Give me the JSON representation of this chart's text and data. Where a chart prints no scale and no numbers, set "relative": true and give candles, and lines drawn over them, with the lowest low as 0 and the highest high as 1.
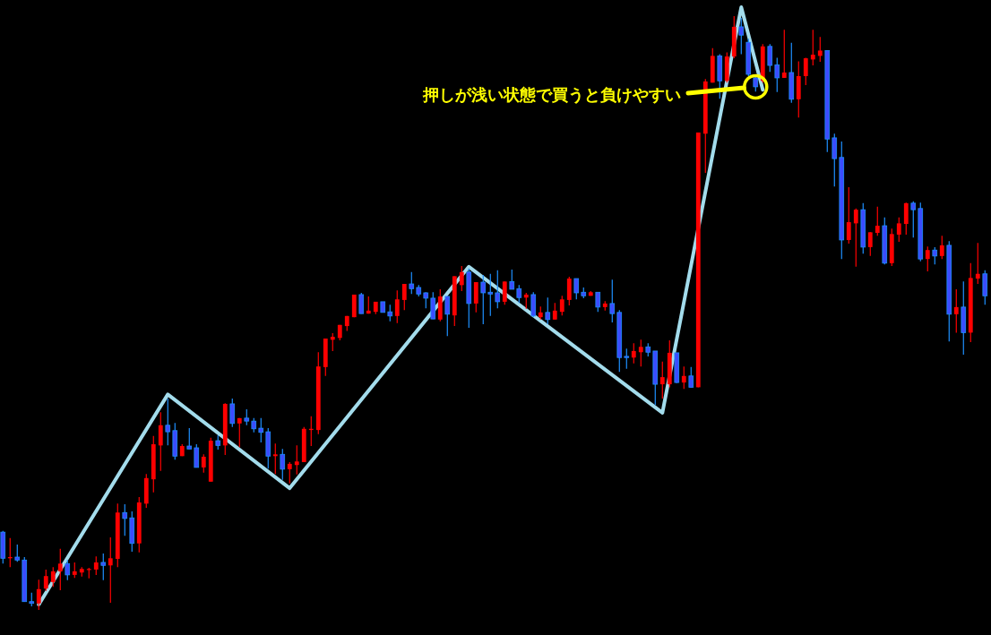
{
  "chart_data": {
    "type": "candlestick",
    "relative": true,
    "categories": [
      null,
      null,
      null,
      null,
      null,
      null,
      null,
      null,
      null,
      null,
      null,
      null,
      null,
      null,
      null,
      null,
      null,
      null,
      null,
      null,
      null,
      null,
      null,
      null,
      null,
      null,
      null,
      null,
      null,
      null,
      null,
      null,
      null,
      null,
      null,
      null,
      null,
      null,
      null,
      null,
      null,
      null,
      null,
      null,
      null,
      null,
      null,
      null,
      null,
      null,
      null,
      null,
      null,
      null,
      null,
      null,
      null,
      null,
      null,
      null,
      null,
      null,
      null,
      null,
      null,
      null,
      null,
      null,
      null,
      null,
      null,
      null,
      null,
      null,
      null,
      null,
      null,
      null,
      null,
      null,
      null,
      null,
      null,
      null,
      null,
      null,
      null,
      null,
      null,
      null,
      null,
      null,
      null,
      null,
      null,
      null,
      null,
      null,
      null,
      null,
      null,
      null,
      null,
      null,
      null,
      null,
      null,
      null,
      null,
      null,
      null,
      null,
      null,
      null,
      null,
      null,
      null,
      null,
      null,
      null,
      null,
      null,
      null,
      null,
      null,
      null,
      null,
      null,
      null,
      null,
      null,
      null,
      null,
      null,
      null,
      null,
      null,
      null
    ],
    "ohlc": [
      [
        0.131,
        0.133,
        0.078,
        0.087
      ],
      [
        0.087,
        0.121,
        0.072,
        0.089
      ],
      [
        0.089,
        0.11,
        0.081,
        0.084
      ],
      [
        0.084,
        0.089,
        0.014,
        0.014
      ],
      [
        0.014,
        0.029,
        0.006,
        0.011
      ],
      [
        0.011,
        0.051,
        0,
        0.035
      ],
      [
        0.036,
        0.068,
        0.032,
        0.057
      ],
      [
        0.047,
        0.072,
        0.039,
        0.065
      ],
      [
        0.065,
        0.103,
        0.033,
        0.078
      ],
      [
        0.078,
        0.084,
        0.05,
        0.059
      ],
      [
        0.059,
        0.08,
        0.054,
        0.065
      ],
      [
        0.063,
        0.072,
        0.056,
        0.069
      ],
      [
        0.068,
        0.071,
        0.053,
        0.069
      ],
      [
        0.068,
        0.09,
        0.059,
        0.08
      ],
      [
        0.08,
        0.095,
        0.05,
        0.075
      ],
      [
        0.075,
        0.122,
        0.012,
        0.087
      ],
      [
        0.086,
        0.179,
        0.072,
        0.164
      ],
      [
        0.164,
        0.178,
        0.125,
        0.154
      ],
      [
        0.155,
        0.166,
        0.098,
        0.112
      ],
      [
        0.112,
        0.19,
        0.097,
        0.181
      ],
      [
        0.179,
        0.229,
        0.172,
        0.222
      ],
      [
        0.22,
        0.293,
        0.198,
        0.279
      ],
      [
        0.277,
        0.333,
        0.234,
        0.311
      ],
      [
        0.311,
        0.356,
        0.277,
        0.3
      ],
      [
        0.302,
        0.315,
        0.253,
        0.259
      ],
      [
        0.259,
        0.279,
        0.259,
        0.276
      ],
      [
        0.276,
        0.306,
        0.271,
        0.271
      ],
      [
        0.273,
        0.279,
        0.24,
        0.24
      ],
      [
        0.24,
        0.262,
        0.231,
        0.258
      ],
      [
        0.216,
        0.29,
        0.216,
        0.285
      ],
      [
        0.285,
        0.294,
        0.27,
        0.277
      ],
      [
        0.277,
        0.348,
        0.261,
        0.347
      ],
      [
        0.347,
        0.356,
        0.308,
        0.314
      ],
      [
        0.314,
        0.323,
        0.274,
        0.323
      ],
      [
        0.323,
        0.338,
        0.311,
        0.318
      ],
      [
        0.318,
        0.323,
        0.299,
        0.305
      ],
      [
        0.306,
        0.323,
        0.282,
        0.299
      ],
      [
        0.3,
        0.306,
        0.238,
        0.259
      ],
      [
        0.259,
        0.28,
        0.229,
        0.262
      ],
      [
        0.262,
        0.271,
        0.219,
        0.237
      ],
      [
        0.237,
        0.249,
        0.213,
        0.246
      ],
      [
        0.244,
        0.277,
        0.228,
        0.25
      ],
      [
        0.249,
        0.308,
        0.249,
        0.305
      ],
      [
        0.303,
        0.326,
        0.276,
        0.305
      ],
      [
        0.303,
        0.434,
        0.296,
        0.41
      ],
      [
        0.409,
        0.457,
        0.394,
        0.457
      ],
      [
        0.455,
        0.466,
        0.436,
        0.46
      ],
      [
        0.458,
        0.48,
        0.454,
        0.48
      ],
      [
        0.478,
        0.495,
        0.47,
        0.495
      ],
      [
        0.493,
        0.531,
        0.493,
        0.531
      ],
      [
        0.531,
        0.534,
        0.499,
        0.499
      ],
      [
        0.499,
        0.528,
        0.499,
        0.504
      ],
      [
        0.502,
        0.519,
        0.498,
        0.519
      ],
      [
        0.519,
        0.519,
        0.501,
        0.501
      ],
      [
        0.502,
        0.514,
        0.486,
        0.495
      ],
      [
        0.495,
        0.538,
        0.483,
        0.523
      ],
      [
        0.522,
        0.549,
        0.505,
        0.549
      ],
      [
        0.549,
        0.569,
        0.532,
        0.541
      ],
      [
        0.543,
        0.547,
        0.528,
        0.532
      ],
      [
        0.534,
        0.535,
        0.508,
        0.525
      ],
      [
        0.525,
        0.535,
        0.49,
        0.49
      ],
      [
        0.489,
        0.54,
        0.486,
        0.528
      ],
      [
        0.528,
        0.528,
        0.461,
        0.498
      ],
      [
        0.496,
        0.562,
        0.478,
        0.562
      ],
      [
        0.547,
        0.579,
        0.537,
        0.569
      ],
      [
        0.569,
        0.575,
        0.475,
        0.516
      ],
      [
        0.516,
        0.552,
        0.501,
        0.552
      ],
      [
        0.552,
        0.564,
        0.481,
        0.534
      ],
      [
        0.535,
        0.566,
        0.495,
        0.532
      ],
      [
        0.534,
        0.572,
        0.508,
        0.519
      ],
      [
        0.519,
        0.553,
        0.514,
        0.553
      ],
      [
        0.553,
        0.573,
        0.54,
        0.54
      ],
      [
        0.541,
        0.547,
        0.517,
        0.526
      ],
      [
        0.526,
        0.534,
        0.507,
        0.531
      ],
      [
        0.531,
        0.535,
        0.493,
        0.495
      ],
      [
        0.493,
        0.511,
        0.489,
        0.501
      ],
      [
        0.501,
        0.526,
        0.481,
        0.489
      ],
      [
        0.489,
        0.517,
        0.489,
        0.504
      ],
      [
        0.502,
        0.529,
        0.496,
        0.523
      ],
      [
        0.522,
        0.561,
        0.513,
        0.558
      ],
      [
        0.558,
        0.558,
        0.523,
        0.534
      ],
      [
        0.535,
        0.543,
        0.525,
        0.529
      ],
      [
        0.529,
        0.537,
        0.529,
        0.535
      ],
      [
        0.535,
        0.535,
        0.502,
        0.51
      ],
      [
        0.51,
        0.52,
        0.504,
        0.516
      ],
      [
        0.516,
        0.556,
        0.484,
        0.499
      ],
      [
        0.501,
        0.505,
        0.401,
        0.425
      ],
      [
        0.427,
        0.44,
        0.406,
        0.425
      ],
      [
        0.425,
        0.449,
        0.415,
        0.436
      ],
      [
        0.434,
        0.455,
        0.41,
        0.443
      ],
      [
        0.443,
        0.449,
        0.427,
        0.434
      ],
      [
        0.436,
        0.436,
        0.345,
        0.38
      ],
      [
        0.38,
        0.418,
        0.356,
        0.392
      ],
      [
        0.38,
        0.454,
        0.375,
        0.433
      ],
      [
        0.433,
        0.433,
        0.382,
        0.383
      ],
      [
        0.383,
        0.41,
        0.372,
        0.394
      ],
      [
        0.394,
        0.409,
        0.375,
        0.375
      ],
      [
        0.375,
        0.804,
        0.375,
        0.804
      ],
      [
        0.802,
        0.894,
        0.736,
        0.89
      ],
      [
        0.888,
        0.946,
        0.888,
        0.933
      ],
      [
        0.933,
        0.936,
        0.861,
        0.891
      ],
      [
        0.891,
        0.939,
        0.888,
        0.932
      ],
      [
        0.932,
        1,
        0.929,
        0.982
      ],
      [
        0.982,
        0.997,
        0.936,
        0.968
      ],
      [
        0.956,
        0.962,
        0.899,
        0.902
      ],
      [
        0.896,
        0.899,
        0.873,
        0.881
      ],
      [
        0.891,
        0.953,
        0.888,
        0.949
      ],
      [
        0.949,
        0.953,
        0.906,
        0.917
      ],
      [
        0.918,
        0.93,
        0.872,
        0.896
      ],
      [
        0.896,
        0.977,
        0.896,
        0.905
      ],
      [
        0.905,
        0.955,
        0.854,
        0.86
      ],
      [
        0.86,
        0.924,
        0.829,
        0.899
      ],
      [
        0.899,
        0.93,
        0.884,
        0.929
      ],
      [
        0.927,
        0.977,
        0.917,
        0.935
      ],
      [
        0.933,
        0.965,
        0.923,
        0.942
      ],
      [
        0.942,
        0.942,
        0.771,
        0.793
      ],
      [
        0.795,
        0.802,
        0.713,
        0.76
      ],
      [
        0.762,
        0.789,
        0.591,
        0.623
      ],
      [
        0.623,
        0.712,
        0.617,
        0.653
      ],
      [
        0.651,
        0.676,
        0.578,
        0.674
      ],
      [
        0.674,
        0.685,
        0.6,
        0.611
      ],
      [
        0.611,
        0.636,
        0.596,
        0.636
      ],
      [
        0.635,
        0.679,
        0.63,
        0.647
      ],
      [
        0.647,
        0.661,
        0.582,
        0.584
      ],
      [
        0.584,
        0.642,
        0.579,
        0.633
      ],
      [
        0.632,
        0.661,
        0.62,
        0.651
      ],
      [
        0.65,
        0.686,
        0.632,
        0.685
      ],
      [
        0.685,
        0.688,
        0.627,
        0.674
      ],
      [
        0.676,
        0.686,
        0.587,
        0.591
      ],
      [
        0.591,
        0.612,
        0.57,
        0.606
      ],
      [
        0.606,
        0.611,
        0.582,
        0.596
      ],
      [
        0.596,
        0.63,
        0.591,
        0.614
      ],
      [
        0.614,
        0.621,
        0.452,
        0.498
      ],
      [
        0.498,
        0.54,
        0.467,
        0.51
      ],
      [
        0.51,
        0.553,
        0.43,
        0.467
      ],
      [
        0.467,
        0.584,
        0.451,
        0.559
      ],
      [
        0.558,
        0.618,
        0.549,
        0.566
      ],
      [
        0.566,
        0.572,
        0.514,
        0.529
      ]
    ],
    "series": [
      {
        "type": "line",
        "color": "#a3dcec",
        "values": [
          null,
          null,
          null,
          null,
          null,
          0.009,
          null,
          null,
          null,
          null,
          null,
          null,
          null,
          null,
          null,
          null,
          null,
          null,
          null,
          null,
          null,
          null,
          null,
          0.363,
          null,
          null,
          null,
          null,
          null,
          null,
          null,
          null,
          null,
          null,
          null,
          null,
          null,
          null,
          null,
          null,
          0.205,
          null,
          null,
          null,
          null,
          null,
          null,
          null,
          null,
          null,
          null,
          null,
          null,
          null,
          null,
          null,
          null,
          null,
          null,
          null,
          null,
          null,
          null,
          null,
          null,
          0.578,
          null,
          null,
          null,
          null,
          null,
          null,
          null,
          null,
          null,
          null,
          null,
          null,
          null,
          null,
          null,
          null,
          null,
          null,
          null,
          null,
          null,
          null,
          null,
          null,
          null,
          null,
          0.332,
          null,
          null,
          null,
          null,
          null,
          null,
          null,
          null,
          null,
          null,
          1.015,
          null,
          null,
          0.876,
          null,
          null,
          null,
          null,
          null,
          null,
          null,
          null,
          null,
          null,
          null,
          null,
          null,
          null,
          null,
          null,
          null,
          null,
          null,
          null,
          null,
          null,
          null,
          null,
          null,
          null,
          null,
          null,
          null,
          null,
          null
        ]
      },
      {
        "type": "scatter",
        "color": "#ffff00",
        "marker": "circle",
        "values": [
          null,
          null,
          null,
          null,
          null,
          null,
          null,
          null,
          null,
          null,
          null,
          null,
          null,
          null,
          null,
          null,
          null,
          null,
          null,
          null,
          null,
          null,
          null,
          null,
          null,
          null,
          null,
          null,
          null,
          null,
          null,
          null,
          null,
          null,
          null,
          null,
          null,
          null,
          null,
          null,
          null,
          null,
          null,
          null,
          null,
          null,
          null,
          null,
          null,
          null,
          null,
          null,
          null,
          null,
          null,
          null,
          null,
          null,
          null,
          null,
          null,
          null,
          null,
          null,
          null,
          null,
          null,
          null,
          null,
          null,
          null,
          null,
          null,
          null,
          null,
          null,
          null,
          null,
          null,
          null,
          null,
          null,
          null,
          null,
          null,
          null,
          null,
          null,
          null,
          null,
          null,
          null,
          null,
          null,
          null,
          null,
          null,
          null,
          null,
          null,
          null,
          null,
          null,
          null,
          null,
          0.881,
          null,
          null,
          null,
          null,
          null,
          null,
          null,
          null,
          null,
          null,
          null,
          null,
          null,
          null,
          null,
          null,
          null,
          null,
          null,
          null,
          null,
          null,
          null,
          null,
          null,
          null,
          null,
          null,
          null,
          null,
          null,
          null
        ]
      }
    ],
    "annotations": [
      "押しが浅い状態で買うと負けやすい"
    ]
  }
}
